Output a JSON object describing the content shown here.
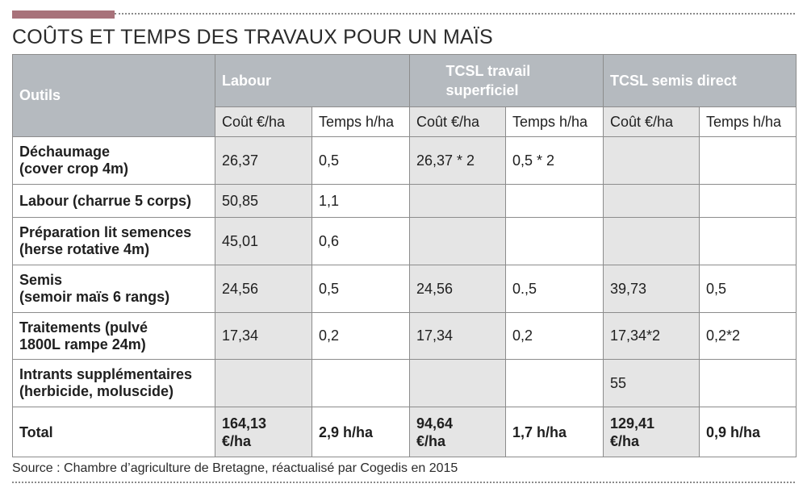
{
  "title": "COÛTS ET TEMPS DES TRAVAUX POUR UN MAÏS",
  "table": {
    "outils_header": "Outils",
    "groups": [
      "Labour",
      "TCSL travail superficiel",
      "TCSL semis direct"
    ],
    "subheaders": [
      "Coût €/ha",
      "Temps h/ha",
      "Coût €/ha",
      "Temps h/ha",
      "Coût €/ha",
      "Temps h/ha"
    ],
    "rows": [
      {
        "tool_line1": "Déchaumage",
        "tool_line2": "(cover crop 4m)",
        "cells": [
          "26,37",
          "0,5",
          "26,37 * 2",
          "0,5 * 2",
          "",
          ""
        ]
      },
      {
        "tool_line1": "Labour (charrue 5 corps)",
        "tool_line2": "",
        "cells": [
          "50,85",
          "1,1",
          "",
          "",
          "",
          ""
        ]
      },
      {
        "tool_line1": "Préparation lit semences",
        "tool_line2": "(herse rotative 4m)",
        "cells": [
          "45,01",
          "0,6",
          "",
          "",
          "",
          ""
        ]
      },
      {
        "tool_line1": "Semis",
        "tool_line2": "(semoir maïs 6 rangs)",
        "cells": [
          "24,56",
          "0,5",
          "24,56",
          "0.,5",
          "39,73",
          "0,5"
        ]
      },
      {
        "tool_line1": "Traitements (pulvé",
        "tool_line2": "1800L rampe 24m)",
        "cells": [
          "17,34",
          "0,2",
          "17,34",
          "0,2",
          "17,34*2",
          "0,2*2"
        ]
      },
      {
        "tool_line1": "Intrants supplémentaires",
        "tool_line2": "(herbicide, moluscide)",
        "cells": [
          "",
          "",
          "",
          "",
          "55",
          ""
        ]
      }
    ],
    "total": {
      "label": "Total",
      "labour_cost_line1": "164,13",
      "labour_cost_line2": "€/ha",
      "labour_time": "2,9 h/ha",
      "ts_cost_line1": "94,64",
      "ts_cost_line2": "€/ha",
      "ts_time": "1,7 h/ha",
      "sd_cost_line1": "129,41",
      "sd_cost_line2": "€/ha",
      "sd_time": "0,9 h/ha"
    }
  },
  "source": "Source : Chambre d’agriculture de Bretagne, réactualisé par Cogedis en 2015",
  "colors": {
    "accent": "#a8727a",
    "header_bg": "#b5babf",
    "shaded_column": "#e5e5e5",
    "border": "#8c8c8c"
  }
}
